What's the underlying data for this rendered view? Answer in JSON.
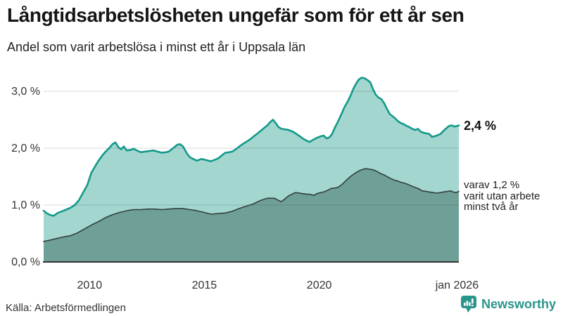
{
  "header": {
    "title": "Långtidsarbetslösheten ungefär som för ett år sen",
    "subtitle": "Andel som varit arbetslösa i minst ett år i Uppsala län"
  },
  "footer": {
    "source": "Källa: Arbetsförmedlingen",
    "brand": "Newsworthy"
  },
  "colors": {
    "accent_teal": "#13998a",
    "light_fill": "#a3d6cf",
    "dark_fill": "#6fa098",
    "dark_line": "#33403d",
    "axis": "#333333",
    "brand_teal": "#2a958b"
  },
  "chart_data": {
    "type": "area",
    "title": "Långtidsarbetslösheten ungefär som för ett år sen",
    "subtitle": "Andel som varit arbetslösa i minst ett år i Uppsala län",
    "x_domain": [
      2008.0,
      2026.08
    ],
    "y_domain": [
      0,
      3.5
    ],
    "grid": "horizontal",
    "legend_position": "none",
    "yticks": [
      {
        "value": 0,
        "label": "0,0 %"
      },
      {
        "value": 1,
        "label": "1,0 %"
      },
      {
        "value": 2,
        "label": "2,0 %"
      },
      {
        "value": 3,
        "label": "3,0 %"
      }
    ],
    "xticks": [
      {
        "value": 2010,
        "label": "2010"
      },
      {
        "value": 2015,
        "label": "2015"
      },
      {
        "value": 2020,
        "label": "2020"
      },
      {
        "value": 2026.0,
        "label": "jan 2026"
      }
    ],
    "end_label": "2,4 %",
    "annotation": {
      "line1": "varav 1,2 %",
      "line2": "varit utan arbete",
      "line3": "minst två år"
    },
    "series": [
      {
        "name": "arbetslösa minst ett år",
        "line_color": "#13998a",
        "fill_color": "#a3d6cf",
        "end_value": "2,4 %",
        "points": [
          [
            2008.0,
            0.9
          ],
          [
            2008.12,
            0.86
          ],
          [
            2008.25,
            0.83
          ],
          [
            2008.43,
            0.81
          ],
          [
            2008.61,
            0.86
          ],
          [
            2008.8,
            0.89
          ],
          [
            2008.98,
            0.92
          ],
          [
            2009.16,
            0.95
          ],
          [
            2009.35,
            1.0
          ],
          [
            2009.53,
            1.08
          ],
          [
            2009.72,
            1.22
          ],
          [
            2009.9,
            1.35
          ],
          [
            2010.08,
            1.57
          ],
          [
            2010.27,
            1.7
          ],
          [
            2010.39,
            1.78
          ],
          [
            2010.57,
            1.88
          ],
          [
            2010.7,
            1.94
          ],
          [
            2010.85,
            2.0
          ],
          [
            2011.0,
            2.07
          ],
          [
            2011.13,
            2.1
          ],
          [
            2011.25,
            2.02
          ],
          [
            2011.37,
            1.98
          ],
          [
            2011.49,
            2.03
          ],
          [
            2011.62,
            1.96
          ],
          [
            2011.8,
            1.97
          ],
          [
            2011.92,
            1.99
          ],
          [
            2012.11,
            1.95
          ],
          [
            2012.23,
            1.93
          ],
          [
            2012.41,
            1.94
          ],
          [
            2012.6,
            1.95
          ],
          [
            2012.78,
            1.96
          ],
          [
            2012.96,
            1.94
          ],
          [
            2013.15,
            1.92
          ],
          [
            2013.33,
            1.93
          ],
          [
            2013.45,
            1.94
          ],
          [
            2013.64,
            2.0
          ],
          [
            2013.82,
            2.06
          ],
          [
            2013.94,
            2.07
          ],
          [
            2014.07,
            2.03
          ],
          [
            2014.25,
            1.9
          ],
          [
            2014.37,
            1.84
          ],
          [
            2014.56,
            1.8
          ],
          [
            2014.68,
            1.78
          ],
          [
            2014.86,
            1.81
          ],
          [
            2014.99,
            1.8
          ],
          [
            2015.17,
            1.78
          ],
          [
            2015.29,
            1.77
          ],
          [
            2015.48,
            1.8
          ],
          [
            2015.6,
            1.82
          ],
          [
            2015.78,
            1.88
          ],
          [
            2015.91,
            1.92
          ],
          [
            2016.09,
            1.93
          ],
          [
            2016.21,
            1.94
          ],
          [
            2016.4,
            1.99
          ],
          [
            2016.52,
            2.03
          ],
          [
            2016.7,
            2.08
          ],
          [
            2016.82,
            2.11
          ],
          [
            2017.01,
            2.16
          ],
          [
            2017.13,
            2.2
          ],
          [
            2017.32,
            2.26
          ],
          [
            2017.44,
            2.3
          ],
          [
            2017.62,
            2.36
          ],
          [
            2017.74,
            2.4
          ],
          [
            2017.87,
            2.46
          ],
          [
            2017.99,
            2.5
          ],
          [
            2018.11,
            2.44
          ],
          [
            2018.23,
            2.37
          ],
          [
            2018.36,
            2.34
          ],
          [
            2018.54,
            2.33
          ],
          [
            2018.66,
            2.32
          ],
          [
            2018.85,
            2.29
          ],
          [
            2018.97,
            2.26
          ],
          [
            2019.15,
            2.21
          ],
          [
            2019.28,
            2.17
          ],
          [
            2019.46,
            2.13
          ],
          [
            2019.58,
            2.11
          ],
          [
            2019.7,
            2.14
          ],
          [
            2019.89,
            2.18
          ],
          [
            2020.07,
            2.21
          ],
          [
            2020.2,
            2.22
          ],
          [
            2020.32,
            2.17
          ],
          [
            2020.44,
            2.19
          ],
          [
            2020.56,
            2.25
          ],
          [
            2020.68,
            2.36
          ],
          [
            2020.81,
            2.46
          ],
          [
            2020.99,
            2.62
          ],
          [
            2021.11,
            2.73
          ],
          [
            2021.24,
            2.82
          ],
          [
            2021.36,
            2.92
          ],
          [
            2021.48,
            3.04
          ],
          [
            2021.6,
            3.13
          ],
          [
            2021.73,
            3.21
          ],
          [
            2021.85,
            3.24
          ],
          [
            2021.97,
            3.23
          ],
          [
            2022.09,
            3.2
          ],
          [
            2022.22,
            3.16
          ],
          [
            2022.34,
            3.04
          ],
          [
            2022.46,
            2.94
          ],
          [
            2022.58,
            2.89
          ],
          [
            2022.71,
            2.86
          ],
          [
            2022.83,
            2.79
          ],
          [
            2022.95,
            2.69
          ],
          [
            2023.07,
            2.6
          ],
          [
            2023.2,
            2.56
          ],
          [
            2023.32,
            2.52
          ],
          [
            2023.44,
            2.47
          ],
          [
            2023.56,
            2.44
          ],
          [
            2023.69,
            2.42
          ],
          [
            2023.81,
            2.39
          ],
          [
            2023.93,
            2.37
          ],
          [
            2024.05,
            2.34
          ],
          [
            2024.18,
            2.32
          ],
          [
            2024.3,
            2.34
          ],
          [
            2024.42,
            2.29
          ],
          [
            2024.55,
            2.27
          ],
          [
            2024.67,
            2.26
          ],
          [
            2024.79,
            2.25
          ],
          [
            2024.91,
            2.2
          ],
          [
            2025.04,
            2.21
          ],
          [
            2025.16,
            2.23
          ],
          [
            2025.28,
            2.25
          ],
          [
            2025.4,
            2.3
          ],
          [
            2025.53,
            2.35
          ],
          [
            2025.65,
            2.39
          ],
          [
            2025.77,
            2.4
          ],
          [
            2025.89,
            2.38
          ],
          [
            2026.08,
            2.4
          ]
        ]
      },
      {
        "name": "varav utan arbete minst två år",
        "line_color": "#33403d",
        "fill_color": "#6fa098",
        "end_value": "1,2 %",
        "points": [
          [
            2008.0,
            0.36
          ],
          [
            2008.25,
            0.38
          ],
          [
            2008.55,
            0.41
          ],
          [
            2008.86,
            0.44
          ],
          [
            2009.16,
            0.46
          ],
          [
            2009.47,
            0.51
          ],
          [
            2009.78,
            0.58
          ],
          [
            2010.08,
            0.65
          ],
          [
            2010.39,
            0.71
          ],
          [
            2010.7,
            0.78
          ],
          [
            2011.0,
            0.83
          ],
          [
            2011.31,
            0.87
          ],
          [
            2011.62,
            0.9
          ],
          [
            2011.92,
            0.92
          ],
          [
            2012.23,
            0.92
          ],
          [
            2012.54,
            0.93
          ],
          [
            2012.84,
            0.93
          ],
          [
            2013.15,
            0.92
          ],
          [
            2013.45,
            0.93
          ],
          [
            2013.76,
            0.94
          ],
          [
            2014.07,
            0.94
          ],
          [
            2014.37,
            0.92
          ],
          [
            2014.68,
            0.9
          ],
          [
            2014.99,
            0.87
          ],
          [
            2015.29,
            0.84
          ],
          [
            2015.6,
            0.85
          ],
          [
            2015.91,
            0.86
          ],
          [
            2016.21,
            0.89
          ],
          [
            2016.52,
            0.94
          ],
          [
            2016.82,
            0.98
          ],
          [
            2017.13,
            1.02
          ],
          [
            2017.44,
            1.08
          ],
          [
            2017.74,
            1.12
          ],
          [
            2018.05,
            1.12
          ],
          [
            2018.23,
            1.08
          ],
          [
            2018.36,
            1.06
          ],
          [
            2018.54,
            1.12
          ],
          [
            2018.66,
            1.16
          ],
          [
            2018.85,
            1.2
          ],
          [
            2018.97,
            1.22
          ],
          [
            2019.15,
            1.21
          ],
          [
            2019.28,
            1.2
          ],
          [
            2019.46,
            1.19
          ],
          [
            2019.58,
            1.19
          ],
          [
            2019.77,
            1.17
          ],
          [
            2019.89,
            1.2
          ],
          [
            2020.07,
            1.22
          ],
          [
            2020.2,
            1.23
          ],
          [
            2020.38,
            1.26
          ],
          [
            2020.5,
            1.29
          ],
          [
            2020.68,
            1.3
          ],
          [
            2020.81,
            1.31
          ],
          [
            2020.99,
            1.36
          ],
          [
            2021.11,
            1.41
          ],
          [
            2021.3,
            1.48
          ],
          [
            2021.42,
            1.52
          ],
          [
            2021.6,
            1.57
          ],
          [
            2021.73,
            1.6
          ],
          [
            2021.91,
            1.63
          ],
          [
            2022.03,
            1.64
          ],
          [
            2022.22,
            1.63
          ],
          [
            2022.34,
            1.62
          ],
          [
            2022.52,
            1.59
          ],
          [
            2022.64,
            1.56
          ],
          [
            2022.83,
            1.53
          ],
          [
            2022.95,
            1.5
          ],
          [
            2023.14,
            1.46
          ],
          [
            2023.26,
            1.44
          ],
          [
            2023.44,
            1.42
          ],
          [
            2023.56,
            1.4
          ],
          [
            2023.75,
            1.38
          ],
          [
            2023.87,
            1.36
          ],
          [
            2024.05,
            1.33
          ],
          [
            2024.18,
            1.31
          ],
          [
            2024.36,
            1.28
          ],
          [
            2024.48,
            1.25
          ],
          [
            2024.67,
            1.24
          ],
          [
            2024.79,
            1.23
          ],
          [
            2024.97,
            1.22
          ],
          [
            2025.1,
            1.21
          ],
          [
            2025.28,
            1.22
          ],
          [
            2025.4,
            1.23
          ],
          [
            2025.59,
            1.24
          ],
          [
            2025.71,
            1.25
          ],
          [
            2025.83,
            1.23
          ],
          [
            2025.95,
            1.22
          ],
          [
            2026.08,
            1.24
          ]
        ]
      }
    ]
  }
}
